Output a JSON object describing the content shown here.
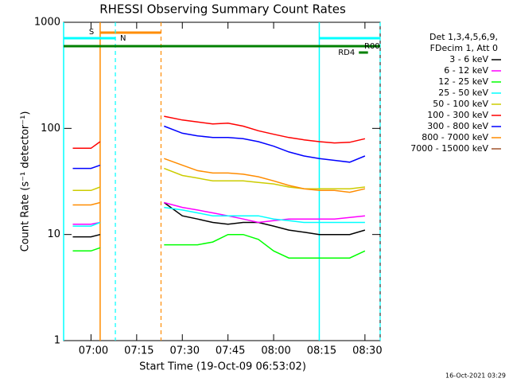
{
  "chart_data": {
    "type": "line",
    "title": "RHESSI Observing Summary Count Rates",
    "xlabel": "Start Time (19-Oct-09 06:53:02)",
    "ylabel": "Count Rate (s⁻¹ detector⁻¹)",
    "footer": "16-Oct-2021 03:29",
    "legend_header": [
      "Det 1,3,4,5,6,9,",
      "FDecim 1, Att 0"
    ],
    "log_y": true,
    "ylim": [
      1,
      1000
    ],
    "yticks": [
      1,
      10,
      100,
      1000
    ],
    "xlim": [
      "06:51",
      "08:35"
    ],
    "xticks": [
      "07:00",
      "07:15",
      "07:30",
      "07:45",
      "08:00",
      "08:15",
      "08:30"
    ],
    "x": [
      "06:54",
      "06:57",
      "07:00",
      "07:03",
      "07:14",
      "07:24",
      "07:30",
      "07:35",
      "07:40",
      "07:45",
      "07:50",
      "07:55",
      "08:00",
      "08:05",
      "08:10",
      "08:15",
      "08:20",
      "08:25",
      "08:30"
    ],
    "series": [
      {
        "name": "3 - 6 keV",
        "color": "#000000",
        "values": [
          9.5,
          9.5,
          9.5,
          10,
          null,
          20,
          15,
          14,
          13,
          12.5,
          13,
          13,
          12,
          11,
          10.5,
          10,
          10,
          10,
          11
        ]
      },
      {
        "name": "6 - 12 keV",
        "color": "#ff00ff",
        "values": [
          12.5,
          12.5,
          12.5,
          13,
          null,
          20,
          18,
          17,
          16,
          15,
          14,
          13,
          13.5,
          14,
          14,
          14,
          14,
          14.5,
          15
        ]
      },
      {
        "name": "12 - 25 keV",
        "color": "#00ff00",
        "values": [
          7,
          7,
          7,
          7.5,
          null,
          8,
          8,
          8,
          8.5,
          10,
          10,
          9,
          7,
          6,
          6,
          6,
          6,
          6,
          7
        ]
      },
      {
        "name": "25 - 50 keV",
        "color": "#00ffff",
        "values": [
          12,
          12,
          12,
          13,
          null,
          18,
          17,
          16,
          15,
          15,
          15,
          15,
          14,
          13.5,
          13,
          13,
          13,
          13,
          13
        ]
      },
      {
        "name": "50 - 100 keV",
        "color": "#cccc00",
        "values": [
          26,
          26,
          26,
          28,
          null,
          42,
          36,
          34,
          32,
          32,
          32,
          31,
          30,
          28,
          27,
          27,
          27,
          27,
          28
        ]
      },
      {
        "name": "100 - 300 keV",
        "color": "#ff0000",
        "values": [
          65,
          65,
          65,
          75,
          null,
          130,
          120,
          115,
          110,
          112,
          105,
          95,
          88,
          82,
          78,
          75,
          73,
          74,
          80
        ]
      },
      {
        "name": "300 - 800 keV",
        "color": "#0000ff",
        "values": [
          42,
          42,
          42,
          45,
          null,
          105,
          90,
          85,
          82,
          82,
          80,
          75,
          68,
          60,
          55,
          52,
          50,
          48,
          55
        ]
      },
      {
        "name": "800 - 7000 keV",
        "color": "#ff8c00",
        "values": [
          19,
          19,
          19,
          20,
          null,
          52,
          45,
          40,
          38,
          38,
          37,
          35,
          32,
          29,
          27,
          26,
          26,
          25,
          27
        ]
      },
      {
        "name": "7000 - 15000 keV",
        "color": "#a0522d",
        "values": [
          null,
          null,
          null,
          null,
          null,
          null,
          null,
          null,
          null,
          null,
          null,
          null,
          null,
          null,
          null,
          null,
          null,
          null,
          null
        ]
      }
    ],
    "flags": [
      {
        "label": "S",
        "color": "#ff8c00",
        "start": "07:03",
        "end": "07:23",
        "edges": true
      },
      {
        "label": "N",
        "color": "#00ffff",
        "start": "06:51",
        "end": "07:08",
        "edges": true
      },
      {
        "label": "N",
        "color": "#00ffff",
        "start": "08:15",
        "end": "08:35",
        "edges": true
      },
      {
        "label": "R00",
        "color": "#008000",
        "start": "06:51",
        "end": "08:35",
        "edges": false
      },
      {
        "label": "RD4",
        "color": "#008000",
        "start": "08:28",
        "end": "08:31",
        "edges": false
      }
    ]
  }
}
